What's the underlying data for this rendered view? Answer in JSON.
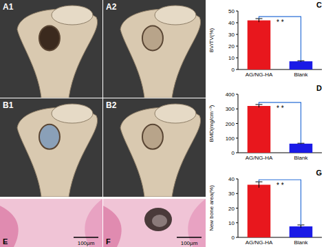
{
  "chart_data": [
    {
      "type": "bar",
      "title": "C",
      "y_label": "BV/TV(%)",
      "categories": [
        "AG/NG-HA",
        "Blank"
      ],
      "values": [
        42,
        7
      ],
      "errors": [
        1.5,
        0.5
      ],
      "colors": [
        "#e8171d",
        "#1a1ae6"
      ],
      "ylim": [
        0,
        50
      ],
      "yticks": [
        0,
        10,
        20,
        30,
        40,
        50
      ],
      "annotation": "* *"
    },
    {
      "type": "bar",
      "title": "D",
      "y_label": "BMD(mg/cm⁻³)",
      "categories": [
        "AG/NG-HA",
        "Blank"
      ],
      "values": [
        320,
        62
      ],
      "errors": [
        10,
        3
      ],
      "colors": [
        "#e8171d",
        "#1a1ae6"
      ],
      "ylim": [
        0,
        400
      ],
      "yticks": [
        0,
        100,
        200,
        300,
        400
      ],
      "annotation": "* *"
    },
    {
      "type": "bar",
      "title": "G",
      "y_label": "New bone area(%)",
      "categories": [
        "AG/NG-HA",
        "Blank"
      ],
      "values": [
        36,
        7.5
      ],
      "errors": [
        2,
        1
      ],
      "colors": [
        "#e8171d",
        "#1a1ae6"
      ],
      "ylim": [
        0,
        40
      ],
      "yticks": [
        0,
        10,
        20,
        30,
        40
      ],
      "annotation": "* *"
    }
  ],
  "panels": [
    {
      "label": "A1"
    },
    {
      "label": "A2"
    },
    {
      "label": "B1"
    },
    {
      "label": "B2"
    },
    {
      "label": "E",
      "scale_bar": "100μm"
    },
    {
      "label": "F",
      "scale_bar": "100μm"
    }
  ]
}
